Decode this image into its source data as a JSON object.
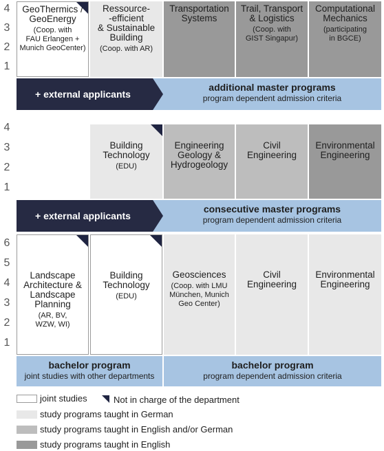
{
  "sections": [
    {
      "semesters": [
        4,
        3,
        2,
        1
      ],
      "programs": [
        {
          "title": "GeoThermics /\nGeoEnergy",
          "note": "(Coop. with\nFAU Erlangen  +\nMunich GeoCenter)",
          "shade": "joint",
          "not_in_charge": true
        },
        {
          "title": "Ressource-\n-efficient\n& Sustainable\nBuilding",
          "note": "(Coop. with AR)",
          "shade": "german",
          "not_in_charge": false
        },
        {
          "title": "Transportation\nSystems",
          "shade": "english",
          "not_in_charge": false
        },
        {
          "title": "Trail, Transport\n& Logistics",
          "note": "(Coop. with\nGIST Singapur)",
          "shade": "english",
          "not_in_charge": false
        },
        {
          "title": "Computational\nMechanics",
          "note": "(participating\nin BGCE)",
          "shade": "english",
          "not_in_charge": false
        }
      ],
      "banners": [
        {
          "left": "+ external applicants",
          "title": "additional master programs",
          "subtitle": "program dependent admission criteria"
        }
      ]
    },
    {
      "semesters": [
        4,
        3,
        2,
        1
      ],
      "programs": [
        null,
        {
          "title": "Building\nTechnology",
          "note": "(EDU)",
          "shade": "light",
          "not_in_charge": true
        },
        {
          "title": "Engineering\nGeology &\nHydrogeology",
          "shade": "mixed",
          "not_in_charge": false
        },
        {
          "title": "Civil\nEngineering",
          "shade": "mixed",
          "not_in_charge": false
        },
        {
          "title": "Environmental\nEngineering",
          "shade": "english",
          "not_in_charge": false
        }
      ],
      "banners": [
        {
          "left": "+ external applicants",
          "title": "consecutive master programs",
          "subtitle": "program dependent admission criteria"
        }
      ]
    },
    {
      "semesters": [
        6,
        5,
        4,
        3,
        2,
        1
      ],
      "programs": [
        {
          "title": "Landscape\nArchitecture &\nLandscape\nPlanning",
          "note": "(AR, BV,\nWZW, WI)",
          "shade": "joint",
          "not_in_charge": true
        },
        {
          "title": "Building\nTechnology",
          "note": "(EDU)",
          "shade": "joint",
          "not_in_charge": true
        },
        {
          "title": "Geosciences",
          "note": "(Coop. with LMU\nMünchen, Munich\nGeo Center)",
          "shade": "light",
          "not_in_charge": false
        },
        {
          "title": "Civil\nEngineering",
          "shade": "light",
          "not_in_charge": false
        },
        {
          "title": "Environmental\nEngineering",
          "shade": "light",
          "not_in_charge": false
        }
      ],
      "banners": [
        {
          "title": "bachelor program",
          "subtitle": "joint studies with other departments"
        },
        {
          "title": "bachelor program",
          "subtitle": "program dependent admission criteria"
        }
      ]
    }
  ],
  "legend": {
    "joint": {
      "label": "joint studies",
      "color": "#ffffff"
    },
    "not_in_charge": {
      "label": "Not in charge of the department"
    },
    "light": {
      "label": "study programs taught in German",
      "color": "#e8e8e8"
    },
    "mixed": {
      "label": "study programs taught in English and/or German",
      "color": "#bdbdbd"
    },
    "english": {
      "label": "study programs taught in English",
      "color": "#999999"
    }
  }
}
